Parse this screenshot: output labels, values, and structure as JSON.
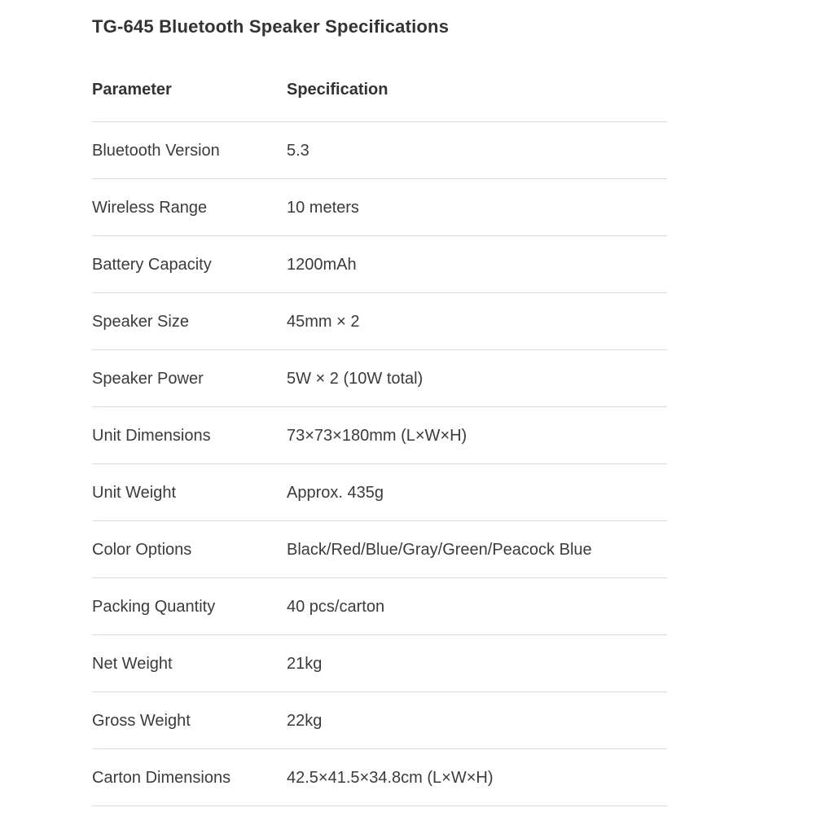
{
  "page_title": "TG-645 Bluetooth Speaker Specifications",
  "table": {
    "column_headers": [
      "Parameter",
      "Specification"
    ],
    "rows": [
      {
        "parameter": "Bluetooth Version",
        "specification": "5.3"
      },
      {
        "parameter": "Wireless Range",
        "specification": "10 meters"
      },
      {
        "parameter": "Battery Capacity",
        "specification": "1200mAh"
      },
      {
        "parameter": "Speaker Size",
        "specification": "45mm × 2"
      },
      {
        "parameter": "Speaker Power",
        "specification": "5W × 2 (10W total)"
      },
      {
        "parameter": "Unit Dimensions",
        "specification": "73×73×180mm (L×W×H)"
      },
      {
        "parameter": "Unit Weight",
        "specification": "Approx. 435g"
      },
      {
        "parameter": "Color Options",
        "specification": "Black/Red/Blue/Gray/Green/Peacock Blue"
      },
      {
        "parameter": "Packing Quantity",
        "specification": "40 pcs/carton"
      },
      {
        "parameter": "Net Weight",
        "specification": "21kg"
      },
      {
        "parameter": "Gross Weight",
        "specification": "22kg"
      },
      {
        "parameter": "Carton Dimensions",
        "specification": "42.5×41.5×34.8cm (L×W×H)"
      }
    ]
  },
  "colors": {
    "background": "#ffffff",
    "heading_text": "#333333",
    "body_text": "#3b3b3b",
    "divider": "#dcdcdc"
  }
}
